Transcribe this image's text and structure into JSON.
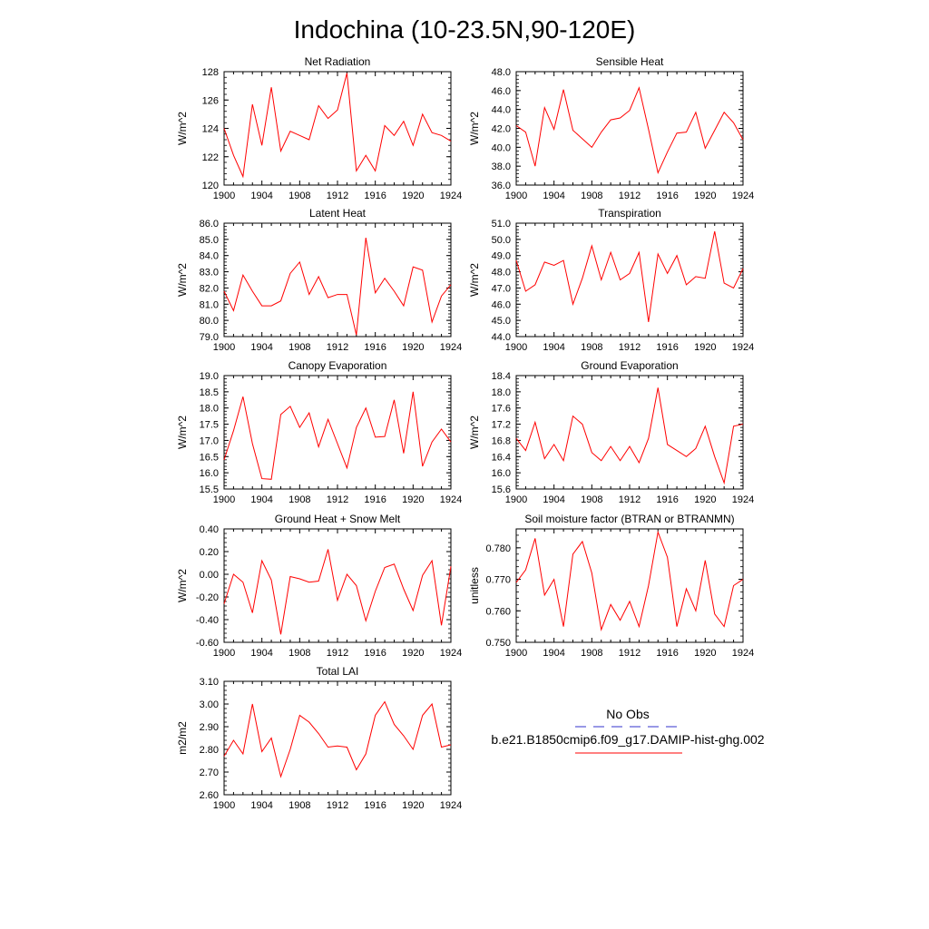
{
  "title": "Indochina (10-23.5N,90-120E)",
  "line_color": "#ff0000",
  "obs_color": "#3333cc",
  "legend": {
    "obs_label": "No Obs",
    "model_label": "b.e21.B1850cmip6.f09_g17.DAMIP-hist-ghg.002"
  },
  "chart_data": [
    {
      "type": "line",
      "title": "Net Radiation",
      "ylabel": "W/m^2",
      "xlim": [
        1900,
        1924
      ],
      "ylim": [
        120,
        128
      ],
      "xticks": [
        "1900",
        "1904",
        "1908",
        "1912",
        "1916",
        "1920",
        "1924"
      ],
      "yticks": [
        "120",
        "122",
        "124",
        "126",
        "128"
      ],
      "x": [
        1900,
        1901,
        1902,
        1903,
        1904,
        1905,
        1906,
        1907,
        1908,
        1909,
        1910,
        1911,
        1912,
        1913,
        1914,
        1915,
        1916,
        1917,
        1918,
        1919,
        1920,
        1921,
        1922,
        1923,
        1924
      ],
      "series": [
        {
          "values": [
            124.0,
            122.1,
            120.6,
            125.7,
            122.8,
            126.9,
            122.4,
            123.8,
            123.5,
            123.2,
            125.6,
            124.7,
            125.3,
            127.9,
            121.0,
            122.1,
            121.0,
            124.2,
            123.5,
            124.5,
            122.8,
            125.0,
            123.7,
            123.5,
            123.1
          ]
        }
      ]
    },
    {
      "type": "line",
      "title": "Sensible Heat",
      "ylabel": "W/m^2",
      "xlim": [
        1900,
        1924
      ],
      "ylim": [
        36.0,
        48.0
      ],
      "xticks": [
        "1900",
        "1904",
        "1908",
        "1912",
        "1916",
        "1920",
        "1924"
      ],
      "yticks": [
        "36.0",
        "38.0",
        "40.0",
        "42.0",
        "44.0",
        "46.0",
        "48.0"
      ],
      "x": [
        1900,
        1901,
        1902,
        1903,
        1904,
        1905,
        1906,
        1907,
        1908,
        1909,
        1910,
        1911,
        1912,
        1913,
        1914,
        1915,
        1916,
        1917,
        1918,
        1919,
        1920,
        1921,
        1922,
        1923,
        1924
      ],
      "series": [
        {
          "values": [
            42.3,
            41.6,
            38.0,
            44.2,
            41.9,
            46.1,
            41.8,
            40.9,
            40.0,
            41.6,
            42.9,
            43.1,
            43.9,
            46.3,
            41.9,
            37.3,
            39.5,
            41.5,
            41.6,
            43.7,
            39.9,
            41.8,
            43.7,
            42.6,
            40.8
          ]
        }
      ]
    },
    {
      "type": "line",
      "title": "Latent Heat",
      "ylabel": "W/m^2",
      "xlim": [
        1900,
        1924
      ],
      "ylim": [
        79.0,
        86.0
      ],
      "xticks": [
        "1900",
        "1904",
        "1908",
        "1912",
        "1916",
        "1920",
        "1924"
      ],
      "yticks": [
        "79.0",
        "80.0",
        "81.0",
        "82.0",
        "83.0",
        "84.0",
        "85.0",
        "86.0"
      ],
      "x": [
        1900,
        1901,
        1902,
        1903,
        1904,
        1905,
        1906,
        1907,
        1908,
        1909,
        1910,
        1911,
        1912,
        1913,
        1914,
        1915,
        1916,
        1917,
        1918,
        1919,
        1920,
        1921,
        1922,
        1923,
        1924
      ],
      "series": [
        {
          "values": [
            81.8,
            80.6,
            82.8,
            81.8,
            80.9,
            80.9,
            81.2,
            82.9,
            83.6,
            81.6,
            82.7,
            81.4,
            81.6,
            81.6,
            79.1,
            85.1,
            81.7,
            82.6,
            81.8,
            80.9,
            83.3,
            83.1,
            79.9,
            81.5,
            82.2
          ]
        }
      ]
    },
    {
      "type": "line",
      "title": "Transpiration",
      "ylabel": "W/m^2",
      "xlim": [
        1900,
        1924
      ],
      "ylim": [
        44.0,
        51.0
      ],
      "xticks": [
        "1900",
        "1904",
        "1908",
        "1912",
        "1916",
        "1920",
        "1924"
      ],
      "yticks": [
        "44.0",
        "45.0",
        "46.0",
        "47.0",
        "48.0",
        "49.0",
        "50.0",
        "51.0"
      ],
      "x": [
        1900,
        1901,
        1902,
        1903,
        1904,
        1905,
        1906,
        1907,
        1908,
        1909,
        1910,
        1911,
        1912,
        1913,
        1914,
        1915,
        1916,
        1917,
        1918,
        1919,
        1920,
        1921,
        1922,
        1923,
        1924
      ],
      "series": [
        {
          "values": [
            48.7,
            46.8,
            47.2,
            48.6,
            48.4,
            48.7,
            46.0,
            47.6,
            49.6,
            47.5,
            49.2,
            47.5,
            47.9,
            49.2,
            44.9,
            49.1,
            47.9,
            49.0,
            47.2,
            47.7,
            47.6,
            50.5,
            47.3,
            47.0,
            48.2
          ]
        }
      ]
    },
    {
      "type": "line",
      "title": "Canopy Evaporation",
      "ylabel": "W/m^2",
      "xlim": [
        1900,
        1924
      ],
      "ylim": [
        15.5,
        19.0
      ],
      "xticks": [
        "1900",
        "1904",
        "1908",
        "1912",
        "1916",
        "1920",
        "1924"
      ],
      "yticks": [
        "15.5",
        "16.0",
        "16.5",
        "17.0",
        "17.5",
        "18.0",
        "18.5",
        "19.0"
      ],
      "x": [
        1900,
        1901,
        1902,
        1903,
        1904,
        1905,
        1906,
        1907,
        1908,
        1909,
        1910,
        1911,
        1912,
        1913,
        1914,
        1915,
        1916,
        1917,
        1918,
        1919,
        1920,
        1921,
        1922,
        1923,
        1924
      ],
      "series": [
        {
          "values": [
            16.4,
            17.3,
            18.35,
            16.9,
            15.82,
            15.8,
            17.8,
            18.05,
            17.4,
            17.85,
            16.8,
            17.65,
            16.9,
            16.15,
            17.4,
            18.0,
            17.1,
            17.12,
            18.25,
            16.6,
            18.5,
            16.2,
            16.95,
            17.35,
            16.95
          ]
        }
      ]
    },
    {
      "type": "line",
      "title": "Ground Evaporation",
      "ylabel": "W/m^2",
      "xlim": [
        1900,
        1924
      ],
      "ylim": [
        15.6,
        18.4
      ],
      "xticks": [
        "1900",
        "1904",
        "1908",
        "1912",
        "1916",
        "1920",
        "1924"
      ],
      "yticks": [
        "15.6",
        "16.0",
        "16.4",
        "16.8",
        "17.2",
        "17.6",
        "18.0",
        "18.4"
      ],
      "x": [
        1900,
        1901,
        1902,
        1903,
        1904,
        1905,
        1906,
        1907,
        1908,
        1909,
        1910,
        1911,
        1912,
        1913,
        1914,
        1915,
        1916,
        1917,
        1918,
        1919,
        1920,
        1921,
        1922,
        1923,
        1924
      ],
      "series": [
        {
          "values": [
            16.85,
            16.55,
            17.25,
            16.35,
            16.7,
            16.3,
            17.4,
            17.2,
            16.5,
            16.3,
            16.65,
            16.3,
            16.65,
            16.25,
            16.85,
            18.1,
            16.7,
            16.55,
            16.4,
            16.6,
            17.15,
            16.4,
            15.75,
            17.15,
            17.2
          ]
        }
      ]
    },
    {
      "type": "line",
      "title": "Ground Heat + Snow Melt",
      "ylabel": "W/m^2",
      "xlim": [
        1900,
        1924
      ],
      "ylim": [
        -0.6,
        0.4
      ],
      "xticks": [
        "1900",
        "1904",
        "1908",
        "1912",
        "1916",
        "1920",
        "1924"
      ],
      "yticks": [
        "-0.60",
        "-0.40",
        "-0.20",
        "0.00",
        "0.20",
        "0.40"
      ],
      "x": [
        1900,
        1901,
        1902,
        1903,
        1904,
        1905,
        1906,
        1907,
        1908,
        1909,
        1910,
        1911,
        1912,
        1913,
        1914,
        1915,
        1916,
        1917,
        1918,
        1919,
        1920,
        1921,
        1922,
        1923,
        1924
      ],
      "series": [
        {
          "values": [
            -0.26,
            0.0,
            -0.07,
            -0.34,
            0.12,
            -0.05,
            -0.53,
            -0.02,
            -0.04,
            -0.07,
            -0.06,
            0.22,
            -0.23,
            0.0,
            -0.1,
            -0.41,
            -0.15,
            0.06,
            0.09,
            -0.13,
            -0.32,
            -0.01,
            0.12,
            -0.45,
            0.07
          ]
        }
      ]
    },
    {
      "type": "line",
      "title": "Soil moisture factor (BTRAN or BTRANMN)",
      "ylabel": "unitless",
      "xlim": [
        1900,
        1924
      ],
      "ylim": [
        0.75,
        0.786
      ],
      "xticks": [
        "1900",
        "1904",
        "1908",
        "1912",
        "1916",
        "1920",
        "1924"
      ],
      "yticks": [
        "0.750",
        "0.760",
        "0.770",
        "0.780"
      ],
      "x": [
        1900,
        1901,
        1902,
        1903,
        1904,
        1905,
        1906,
        1907,
        1908,
        1909,
        1910,
        1911,
        1912,
        1913,
        1914,
        1915,
        1916,
        1917,
        1918,
        1919,
        1920,
        1921,
        1922,
        1923,
        1924
      ],
      "series": [
        {
          "values": [
            0.769,
            0.773,
            0.783,
            0.765,
            0.77,
            0.755,
            0.778,
            0.782,
            0.772,
            0.754,
            0.762,
            0.757,
            0.763,
            0.755,
            0.768,
            0.785,
            0.777,
            0.755,
            0.767,
            0.76,
            0.776,
            0.759,
            0.755,
            0.768,
            0.77
          ]
        }
      ]
    },
    {
      "type": "line",
      "title": "Total LAI",
      "ylabel": "m2/m2",
      "xlim": [
        1900,
        1924
      ],
      "ylim": [
        2.6,
        3.1
      ],
      "xticks": [
        "1900",
        "1904",
        "1908",
        "1912",
        "1916",
        "1920",
        "1924"
      ],
      "yticks": [
        "2.60",
        "2.70",
        "2.80",
        "2.90",
        "3.00",
        "3.10"
      ],
      "x": [
        1900,
        1901,
        1902,
        1903,
        1904,
        1905,
        1906,
        1907,
        1908,
        1909,
        1910,
        1911,
        1912,
        1913,
        1914,
        1915,
        1916,
        1917,
        1918,
        1919,
        1920,
        1921,
        1922,
        1923,
        1924
      ],
      "series": [
        {
          "values": [
            2.77,
            2.84,
            2.78,
            3.0,
            2.79,
            2.85,
            2.68,
            2.8,
            2.95,
            2.92,
            2.87,
            2.81,
            2.815,
            2.81,
            2.71,
            2.78,
            2.95,
            3.01,
            2.91,
            2.86,
            2.8,
            2.95,
            3.0,
            2.81,
            2.82
          ]
        }
      ]
    }
  ]
}
